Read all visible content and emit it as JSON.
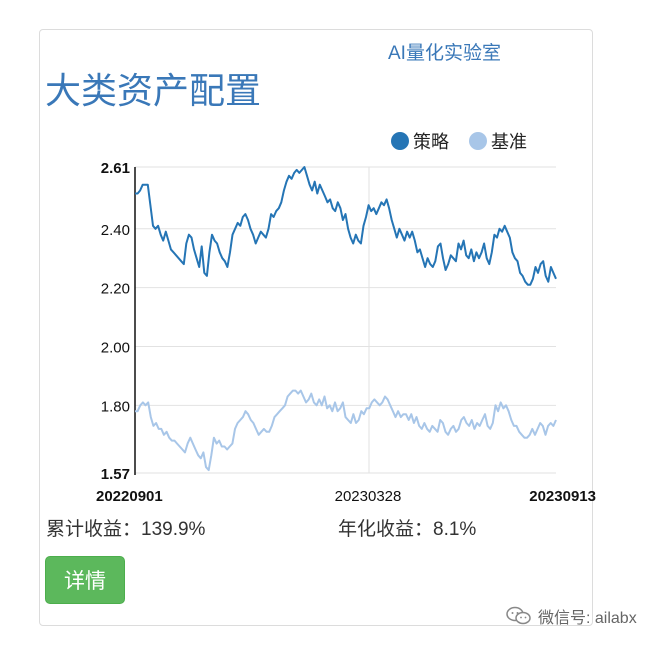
{
  "brand": "AI量化实验室",
  "title": "大类资产配置",
  "legend": [
    {
      "label": "策略",
      "color": "#2575b5"
    },
    {
      "label": "基准",
      "color": "#a8c6e8"
    }
  ],
  "stats": {
    "cumulative_label": "累计收益：",
    "cumulative_value": "139.9%",
    "annual_label": "年化收益：",
    "annual_value": "8.1%"
  },
  "button_label": "详情",
  "watermark": "微信号: ailabx",
  "chart_data": {
    "type": "line",
    "x_labels": [
      "20220901",
      "20230328",
      "20230913"
    ],
    "ylim": [
      1.57,
      2.61
    ],
    "y_ticks": [
      "2.61",
      "2.40",
      "2.20",
      "2.00",
      "1.80",
      "1.57"
    ],
    "grid": true,
    "legend_position": "top-right",
    "series": [
      {
        "name": "策略",
        "color": "#2575b5",
        "values": [
          2.52,
          2.52,
          2.53,
          2.55,
          2.55,
          2.55,
          2.48,
          2.41,
          2.4,
          2.41,
          2.38,
          2.36,
          2.39,
          2.36,
          2.33,
          2.32,
          2.31,
          2.3,
          2.29,
          2.28,
          2.35,
          2.38,
          2.37,
          2.33,
          2.3,
          2.27,
          2.34,
          2.25,
          2.24,
          2.32,
          2.38,
          2.36,
          2.35,
          2.32,
          2.3,
          2.29,
          2.27,
          2.32,
          2.38,
          2.4,
          2.42,
          2.41,
          2.44,
          2.45,
          2.43,
          2.4,
          2.38,
          2.35,
          2.37,
          2.39,
          2.38,
          2.37,
          2.4,
          2.45,
          2.44,
          2.46,
          2.47,
          2.49,
          2.53,
          2.56,
          2.58,
          2.57,
          2.59,
          2.6,
          2.59,
          2.6,
          2.61,
          2.58,
          2.55,
          2.53,
          2.56,
          2.52,
          2.55,
          2.53,
          2.51,
          2.49,
          2.5,
          2.47,
          2.46,
          2.49,
          2.47,
          2.43,
          2.45,
          2.4,
          2.37,
          2.35,
          2.38,
          2.36,
          2.35,
          2.41,
          2.44,
          2.48,
          2.46,
          2.47,
          2.45,
          2.47,
          2.49,
          2.48,
          2.5,
          2.47,
          2.43,
          2.4,
          2.37,
          2.4,
          2.38,
          2.36,
          2.39,
          2.37,
          2.39,
          2.36,
          2.32,
          2.33,
          2.3,
          2.27,
          2.3,
          2.28,
          2.27,
          2.29,
          2.34,
          2.35,
          2.3,
          2.26,
          2.28,
          2.31,
          2.3,
          2.29,
          2.35,
          2.33,
          2.36,
          2.31,
          2.3,
          2.33,
          2.29,
          2.32,
          2.3,
          2.32,
          2.35,
          2.3,
          2.28,
          2.32,
          2.38,
          2.37,
          2.4,
          2.39,
          2.41,
          2.39,
          2.37,
          2.32,
          2.3,
          2.29,
          2.25,
          2.24,
          2.22,
          2.21,
          2.21,
          2.23,
          2.27,
          2.25,
          2.28,
          2.29,
          2.24,
          2.22,
          2.27,
          2.25,
          2.23
        ]
      },
      {
        "name": "基准",
        "color": "#a8c6e8",
        "values": [
          1.78,
          1.78,
          1.8,
          1.81,
          1.8,
          1.81,
          1.76,
          1.73,
          1.74,
          1.72,
          1.72,
          1.7,
          1.71,
          1.69,
          1.68,
          1.68,
          1.67,
          1.66,
          1.65,
          1.64,
          1.67,
          1.69,
          1.67,
          1.65,
          1.63,
          1.62,
          1.64,
          1.59,
          1.58,
          1.63,
          1.69,
          1.67,
          1.68,
          1.66,
          1.66,
          1.65,
          1.66,
          1.67,
          1.72,
          1.74,
          1.75,
          1.76,
          1.78,
          1.77,
          1.75,
          1.74,
          1.72,
          1.7,
          1.71,
          1.72,
          1.71,
          1.71,
          1.73,
          1.76,
          1.77,
          1.78,
          1.79,
          1.8,
          1.83,
          1.84,
          1.85,
          1.85,
          1.84,
          1.85,
          1.83,
          1.81,
          1.82,
          1.84,
          1.81,
          1.8,
          1.82,
          1.8,
          1.83,
          1.79,
          1.8,
          1.78,
          1.81,
          1.78,
          1.79,
          1.81,
          1.76,
          1.75,
          1.74,
          1.77,
          1.74,
          1.75,
          1.78,
          1.77,
          1.79,
          1.79,
          1.81,
          1.82,
          1.81,
          1.8,
          1.81,
          1.83,
          1.82,
          1.8,
          1.78,
          1.76,
          1.78,
          1.76,
          1.77,
          1.77,
          1.75,
          1.77,
          1.74,
          1.76,
          1.73,
          1.72,
          1.74,
          1.72,
          1.71,
          1.73,
          1.72,
          1.71,
          1.75,
          1.74,
          1.71,
          1.7,
          1.72,
          1.73,
          1.71,
          1.72,
          1.75,
          1.76,
          1.74,
          1.73,
          1.75,
          1.72,
          1.74,
          1.73,
          1.75,
          1.77,
          1.73,
          1.72,
          1.74,
          1.8,
          1.78,
          1.81,
          1.79,
          1.8,
          1.78,
          1.75,
          1.73,
          1.73,
          1.71,
          1.7,
          1.69,
          1.69,
          1.7,
          1.72,
          1.7,
          1.72,
          1.74,
          1.73,
          1.7,
          1.73,
          1.74,
          1.73,
          1.75
        ]
      }
    ]
  }
}
